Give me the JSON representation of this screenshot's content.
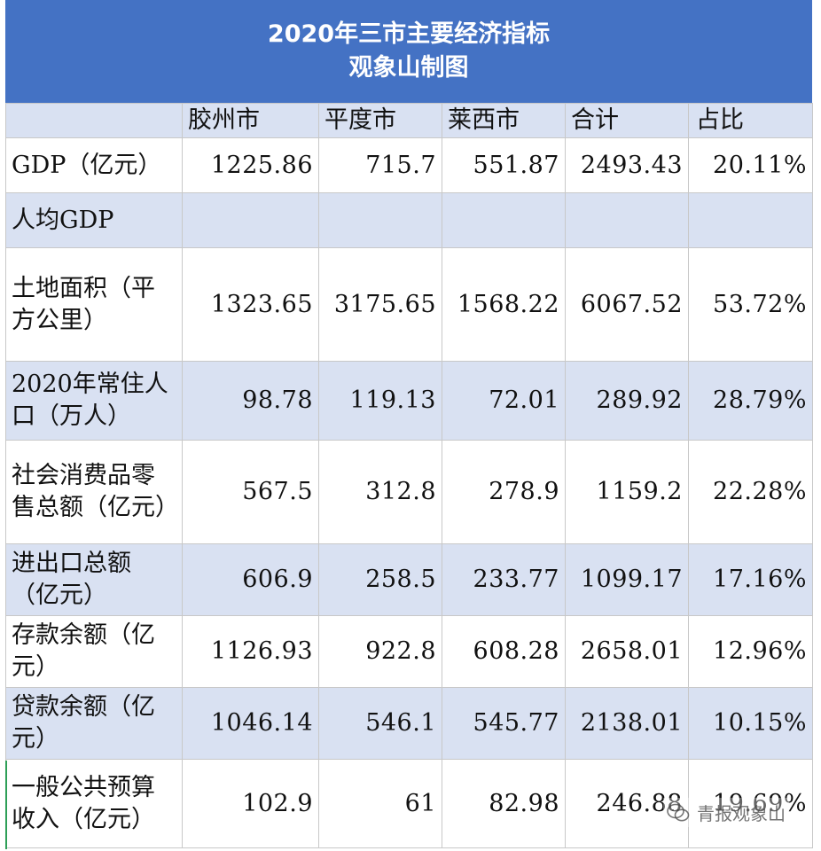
{
  "title": {
    "line1": "2020年三市主要经济指标",
    "line2": "观象山制图"
  },
  "columns": [
    "",
    "胶州市",
    "平度市",
    "莱西市",
    "合计",
    "占比"
  ],
  "rows": [
    {
      "label": "GDP（亿元）",
      "values": [
        "1225.86",
        "715.7",
        "551.87",
        "2493.43",
        "20.11%"
      ],
      "band": false
    },
    {
      "label": "人均GDP",
      "values": [
        "",
        "",
        "",
        "",
        ""
      ],
      "band": true
    },
    {
      "label": "土地面积（平方公里）",
      "values": [
        "1323.65",
        "3175.65",
        "1568.22",
        "6067.52",
        "53.72%"
      ],
      "band": false
    },
    {
      "label": "2020年常住人口（万人）",
      "values": [
        "98.78",
        "119.13",
        "72.01",
        "289.92",
        "28.79%"
      ],
      "band": true
    },
    {
      "label": "社会消费品零售总额（亿元）",
      "values": [
        "567.5",
        "312.8",
        "278.9",
        "1159.2",
        "22.28%"
      ],
      "band": false
    },
    {
      "label": "进出口总额（亿元）",
      "values": [
        "606.9",
        "258.5",
        "233.77",
        "1099.17",
        "17.16%"
      ],
      "band": true
    },
    {
      "label": "存款余额（亿元）",
      "values": [
        "1126.93",
        "922.8",
        "608.28",
        "2658.01",
        "12.96%"
      ],
      "band": false
    },
    {
      "label": "贷款余额（亿元）",
      "values": [
        "1046.14",
        "546.1",
        "545.77",
        "2138.01",
        "10.15%"
      ],
      "band": true
    },
    {
      "label": "一般公共预算收入（亿元）",
      "values": [
        "102.9",
        "61",
        "82.98",
        "246.88",
        "19.69%"
      ],
      "band": false
    }
  ],
  "watermark": {
    "text": "青报观象山",
    "icon": "wechat-icon"
  },
  "colors": {
    "title_bg": "#4472c4",
    "band": "#d9e1f2",
    "grid": "#c8c8c8"
  }
}
